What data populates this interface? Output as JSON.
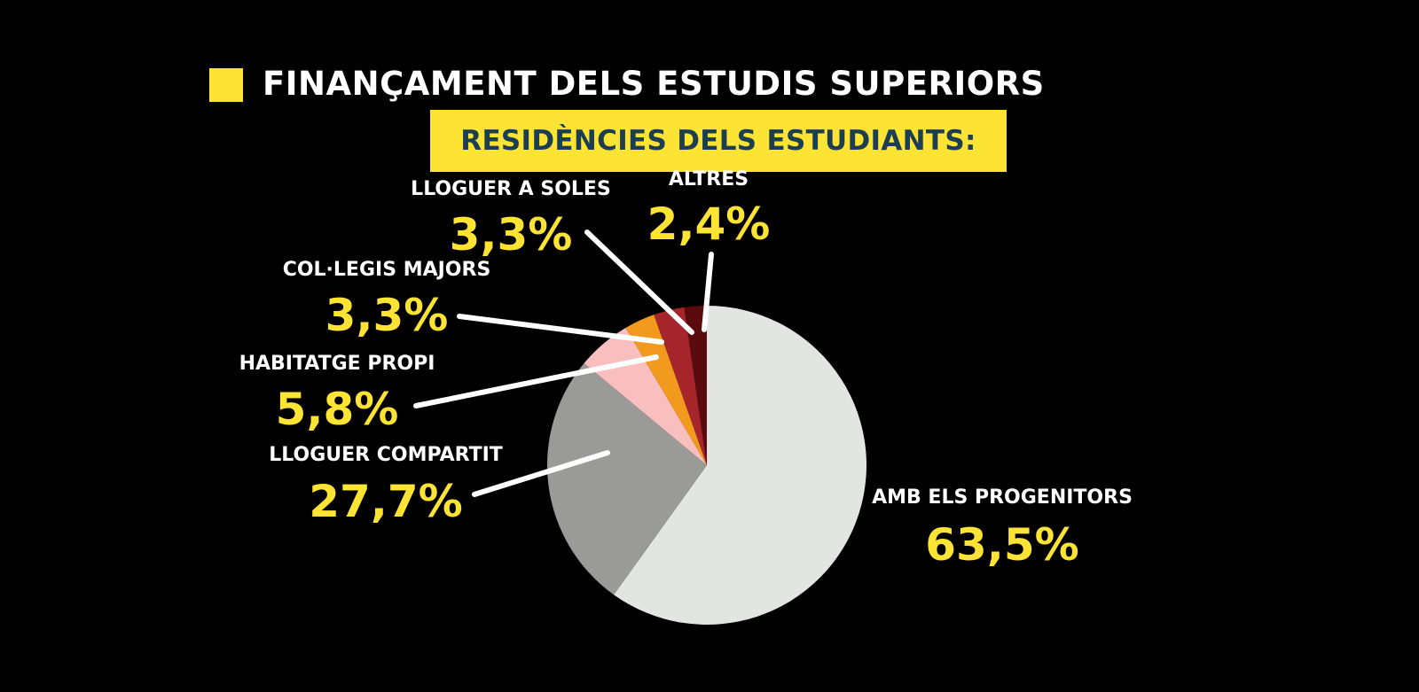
{
  "header": {
    "title": "FINANÇAMENT DELS ESTUDIS SUPERIORS",
    "subtitle": "RESIDÈNCIES DELS ESTUDIANTS:",
    "square_color": "#fde334"
  },
  "chart_data": {
    "type": "pie",
    "title": "FINANÇAMENT DELS ESTUDIS SUPERIORS",
    "subtitle": "RESIDÈNCIES DELS ESTUDIANTS:",
    "start_angle_deg": 0,
    "direction": "clockwise",
    "slices": [
      {
        "label": "AMB ELS PROGENITORS",
        "value": 63.5,
        "value_label": "63,5%",
        "color": "#e2e5e1"
      },
      {
        "label": "LLOGUER COMPARTIT",
        "value": 27.7,
        "value_label": "27,7%",
        "color": "#9a9b98"
      },
      {
        "label": "HABITATGE PROPI",
        "value": 5.8,
        "value_label": "5,8%",
        "color": "#f9bfbf"
      },
      {
        "label": "COL·LEGIS MAJORS",
        "value": 3.3,
        "value_label": "3,3%",
        "color": "#f29a1d"
      },
      {
        "label": "LLOGUER A SOLES",
        "value": 3.3,
        "value_label": "3,3%",
        "color": "#a5252b"
      },
      {
        "label": "ALTRES",
        "value": 2.4,
        "value_label": "2,4%",
        "color": "#5b0a0e"
      }
    ]
  }
}
